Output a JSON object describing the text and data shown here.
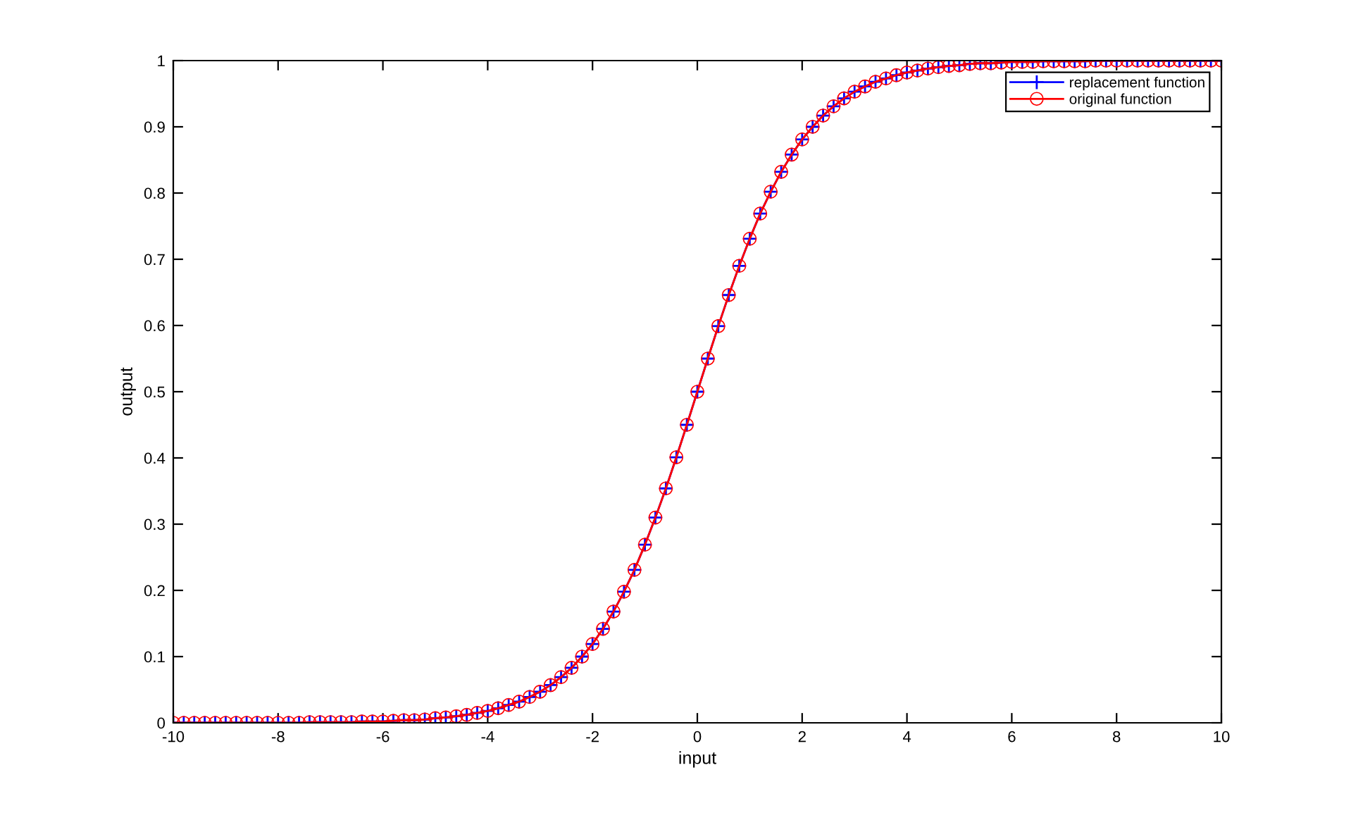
{
  "chart_data": {
    "type": "line",
    "xlabel": "input",
    "ylabel": "output",
    "x": [
      -10,
      -9.8,
      -9.6,
      -9.4,
      -9.2,
      -9,
      -8.8,
      -8.6,
      -8.4,
      -8.2,
      -8,
      -7.8,
      -7.6,
      -7.4,
      -7.2,
      -7,
      -6.8,
      -6.6,
      -6.4,
      -6.2,
      -6,
      -5.8,
      -5.6,
      -5.4,
      -5.2,
      -5,
      -4.8,
      -4.6,
      -4.4,
      -4.2,
      -4,
      -3.8,
      -3.6,
      -3.4,
      -3.2,
      -3,
      -2.8,
      -2.6,
      -2.4,
      -2.2,
      -2,
      -1.8,
      -1.6,
      -1.4,
      -1.2,
      -1,
      -0.8,
      -0.6,
      -0.4,
      -0.2,
      0,
      0.2,
      0.4,
      0.6,
      0.8,
      1,
      1.2,
      1.4,
      1.6,
      1.8,
      2,
      2.2,
      2.4,
      2.6,
      2.8,
      3,
      3.2,
      3.4,
      3.6,
      3.8,
      4,
      4.2,
      4.4,
      4.6,
      4.8,
      5,
      5.2,
      5.4,
      5.6,
      5.8,
      6,
      6.2,
      6.4,
      6.6,
      6.8,
      7,
      7.2,
      7.4,
      7.6,
      7.8,
      8,
      8.2,
      8.4,
      8.6,
      8.8,
      9,
      9.2,
      9.4,
      9.6,
      9.8,
      10
    ],
    "xlim": [
      -10,
      10
    ],
    "ylim": [
      0,
      1
    ],
    "xticks": [
      -10,
      -8,
      -6,
      -4,
      -2,
      0,
      2,
      4,
      6,
      8,
      10
    ],
    "yticks": [
      0,
      0.1,
      0.2,
      0.3,
      0.4,
      0.5,
      0.6,
      0.7,
      0.8,
      0.9,
      1
    ],
    "legend": "top right",
    "series": [
      {
        "name": "replacement function",
        "color": "#0000ff",
        "marker": "cross",
        "line_style": "solid",
        "values": [
          0,
          0,
          0,
          0,
          0,
          0,
          0,
          0,
          0,
          0,
          0,
          0,
          0,
          0.001,
          0.001,
          0.001,
          0.001,
          0.001,
          0.002,
          0.002,
          0.002,
          0.003,
          0.004,
          0.004,
          0.005,
          0.007,
          0.008,
          0.01,
          0.012,
          0.015,
          0.018,
          0.022,
          0.027,
          0.032,
          0.039,
          0.047,
          0.057,
          0.069,
          0.083,
          0.1,
          0.119,
          0.142,
          0.168,
          0.198,
          0.231,
          0.269,
          0.31,
          0.354,
          0.401,
          0.45,
          0.5,
          0.55,
          0.599,
          0.646,
          0.69,
          0.731,
          0.769,
          0.802,
          0.832,
          0.858,
          0.881,
          0.9,
          0.917,
          0.931,
          0.943,
          0.953,
          0.961,
          0.968,
          0.973,
          0.978,
          0.982,
          0.985,
          0.988,
          0.99,
          0.992,
          0.993,
          0.995,
          0.996,
          0.996,
          0.997,
          0.998,
          0.998,
          0.998,
          0.999,
          0.999,
          0.999,
          0.999,
          0.999,
          1,
          1,
          1,
          1,
          1,
          1,
          1,
          1,
          1,
          1,
          1,
          1,
          1
        ]
      },
      {
        "name": "original function",
        "color": "#ff0000",
        "marker": "circle",
        "line_style": "solid",
        "values": [
          0,
          0,
          0,
          0,
          0,
          0,
          0,
          0,
          0,
          0,
          0,
          0,
          0,
          0.001,
          0.001,
          0.001,
          0.001,
          0.001,
          0.002,
          0.002,
          0.002,
          0.003,
          0.004,
          0.004,
          0.005,
          0.007,
          0.008,
          0.01,
          0.012,
          0.015,
          0.018,
          0.022,
          0.027,
          0.032,
          0.039,
          0.047,
          0.057,
          0.069,
          0.083,
          0.1,
          0.119,
          0.142,
          0.168,
          0.198,
          0.231,
          0.269,
          0.31,
          0.354,
          0.401,
          0.45,
          0.5,
          0.55,
          0.599,
          0.646,
          0.69,
          0.731,
          0.769,
          0.802,
          0.832,
          0.858,
          0.881,
          0.9,
          0.917,
          0.931,
          0.943,
          0.953,
          0.961,
          0.968,
          0.973,
          0.978,
          0.982,
          0.985,
          0.988,
          0.99,
          0.992,
          0.993,
          0.995,
          0.996,
          0.996,
          0.997,
          0.998,
          0.998,
          0.998,
          0.999,
          0.999,
          0.999,
          0.999,
          0.999,
          1,
          1,
          1,
          1,
          1,
          1,
          1,
          1,
          1,
          1,
          1,
          1,
          1
        ]
      }
    ]
  }
}
